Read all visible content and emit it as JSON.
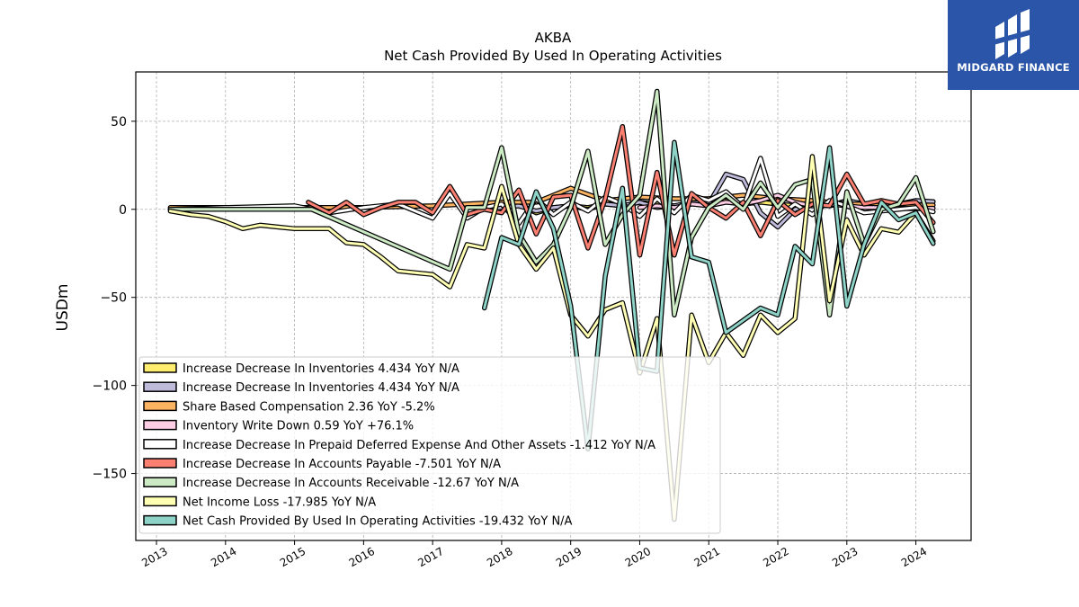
{
  "brand": {
    "name": "MIDGARD FINANCE",
    "color": "#2a55a8"
  },
  "chart_data": {
    "type": "line",
    "title": "AKBA",
    "subtitle": "Net Cash Provided By Used In Operating Activities",
    "xlabel": "",
    "ylabel": "USDm",
    "x_ticks": [
      "2013",
      "2014",
      "2015",
      "2016",
      "2017",
      "2018",
      "2019",
      "2020",
      "2021",
      "2022",
      "2023",
      "2024"
    ],
    "y_ticks": [
      50,
      0,
      -50,
      -100,
      -150
    ],
    "xlim": [
      2012.7,
      2024.8
    ],
    "ylim": [
      -188,
      78
    ],
    "grid": true,
    "legend_position": "lower-left",
    "series": [
      {
        "name": "Increase Decrease In Inventories",
        "legend": "Increase Decrease In Inventories  4.434 YoY N/A",
        "color": "#ffed6f",
        "x": [
          2017.75,
          2018.0,
          2018.25,
          2018.5,
          2018.75,
          2019.0,
          2019.25,
          2019.5,
          2019.75,
          2020.0,
          2020.25,
          2020.5,
          2020.75,
          2021.0,
          2021.25,
          2021.5,
          2021.75,
          2022.0,
          2022.25,
          2022.5,
          2022.75,
          2023.0,
          2023.25,
          2023.5,
          2023.75,
          2024.0,
          2024.25
        ],
        "y": [
          0,
          1,
          3,
          -2,
          1,
          2,
          1,
          3,
          2,
          4,
          3,
          2,
          3,
          4,
          5,
          3,
          4,
          3,
          2,
          3,
          2,
          4,
          3,
          4,
          3,
          4,
          4.4
        ]
      },
      {
        "name": "Increase Decrease In Inventories",
        "legend": "Increase Decrease In Inventories  4.434 YoY N/A",
        "color": "#bebada",
        "x": [
          2017.75,
          2018.0,
          2018.25,
          2018.5,
          2018.75,
          2019.0,
          2019.25,
          2019.5,
          2019.75,
          2020.0,
          2020.25,
          2020.5,
          2020.75,
          2021.0,
          2021.25,
          2021.5,
          2021.75,
          2022.0,
          2022.25,
          2022.5,
          2022.75,
          2023.0,
          2023.25,
          2023.5,
          2023.75,
          2024.0,
          2024.25
        ],
        "y": [
          0,
          1,
          2,
          -1,
          1,
          2,
          0,
          3,
          2,
          4,
          1,
          2,
          4,
          3,
          20,
          17,
          -2,
          -10,
          0,
          3,
          2,
          5,
          3,
          4,
          3,
          5,
          4.4
        ]
      },
      {
        "name": "Share Based Compensation",
        "legend": "Share Based Compensation  2.36 YoY -5.2%",
        "color": "#fdb462",
        "x": [
          2013.2,
          2014.0,
          2015.0,
          2016.0,
          2017.0,
          2017.5,
          2018.0,
          2018.5,
          2019.0,
          2019.5,
          2020.0,
          2020.5,
          2021.0,
          2021.5,
          2022.0,
          2022.5,
          2023.0,
          2023.5,
          2024.0,
          2024.25
        ],
        "y": [
          1,
          1,
          1,
          1,
          2,
          3,
          4,
          4,
          12,
          5,
          7,
          6,
          6,
          8,
          6,
          5,
          3,
          3,
          2.5,
          2.4
        ]
      },
      {
        "name": "Inventory Write Down",
        "legend": "Inventory Write Down  0.59 YoY +76.1%",
        "color": "#fccde5",
        "x": [
          2020.0,
          2020.25,
          2020.5,
          2020.75,
          2021.0,
          2021.25,
          2021.5,
          2021.75,
          2022.0,
          2022.25,
          2022.5,
          2022.75,
          2023.0,
          2023.25,
          2023.5,
          2023.75,
          2024.0,
          2024.25
        ],
        "y": [
          1,
          2,
          1,
          3,
          2,
          4,
          3,
          5,
          8,
          4,
          2,
          3,
          2,
          1,
          1,
          0.5,
          0.4,
          0.6
        ]
      },
      {
        "name": "Increase Decrease In Prepaid Deferred Expense And Other Assets",
        "legend": "Increase Decrease In Prepaid Deferred Expense And Other Assets  -1.412 YoY N/A",
        "color": "#ffffff",
        "x": [
          2013.2,
          2014.0,
          2015.0,
          2015.5,
          2016.0,
          2016.5,
          2017.0,
          2017.25,
          2017.5,
          2017.75,
          2018.0,
          2018.25,
          2018.5,
          2018.75,
          2019.0,
          2019.25,
          2019.5,
          2019.75,
          2020.0,
          2020.25,
          2020.5,
          2020.75,
          2021.0,
          2021.25,
          2021.5,
          2021.75,
          2022.0,
          2022.25,
          2022.5,
          2022.75,
          2023.0,
          2023.25,
          2023.5,
          2023.75,
          2024.0,
          2024.25
        ],
        "y": [
          0,
          1,
          2,
          -2,
          1,
          3,
          -5,
          9,
          -5,
          1,
          3,
          -8,
          6,
          -3,
          4,
          -1,
          7,
          3,
          -4,
          6,
          -2,
          8,
          5,
          10,
          1,
          29,
          -4,
          3,
          -3,
          5,
          2,
          -2,
          -1,
          0,
          1,
          -1.4
        ]
      },
      {
        "name": "Increase Decrease In Accounts Payable",
        "legend": "Increase Decrease In Accounts Payable  -7.501 YoY N/A",
        "color": "#fb8072",
        "x": [
          2015.2,
          2015.5,
          2015.75,
          2016.0,
          2016.25,
          2016.5,
          2016.75,
          2017.0,
          2017.25,
          2017.5,
          2017.75,
          2018.0,
          2018.25,
          2018.5,
          2018.75,
          2019.0,
          2019.25,
          2019.5,
          2019.75,
          2020.0,
          2020.25,
          2020.5,
          2020.75,
          2021.0,
          2021.25,
          2021.5,
          2021.75,
          2022.0,
          2022.25,
          2022.5,
          2022.75,
          2023.0,
          2023.25,
          2023.5,
          2023.75,
          2024.0,
          2024.25
        ],
        "y": [
          4,
          -2,
          4,
          -3,
          1,
          4,
          4,
          -2,
          13,
          -3,
          0,
          -2,
          11,
          -14,
          7,
          8,
          -22,
          6,
          47,
          -26,
          21,
          -26,
          9,
          1,
          -5,
          4,
          -15,
          5,
          -3,
          3,
          2,
          20,
          3,
          5,
          3,
          4,
          -7.5
        ]
      },
      {
        "name": "Increase Decrease In Accounts Receivable",
        "legend": "Increase Decrease In Accounts Receivable  -12.67 YoY N/A",
        "color": "#ccebc5",
        "x": [
          2013.2,
          2014.0,
          2015.0,
          2015.25,
          2017.25,
          2017.5,
          2017.75,
          2018.0,
          2018.25,
          2018.5,
          2018.75,
          2019.0,
          2019.25,
          2019.5,
          2019.75,
          2020.0,
          2020.25,
          2020.5,
          2020.75,
          2021.0,
          2021.25,
          2021.5,
          2021.75,
          2022.0,
          2022.25,
          2022.5,
          2022.75,
          2023.0,
          2023.25,
          2023.5,
          2023.75,
          2024.0,
          2024.25
        ],
        "y": [
          0,
          0,
          0,
          0,
          -34,
          1,
          1,
          35,
          -14,
          -30,
          -20,
          1,
          33,
          -20,
          -3,
          8,
          67,
          -60,
          -16,
          1,
          8,
          0,
          15,
          1,
          14,
          17,
          -60,
          10,
          -20,
          0,
          3,
          18,
          -12.7
        ]
      },
      {
        "name": "Net Income Loss",
        "legend": "Net Income Loss  -17.985 YoY N/A",
        "color": "#ffffb3",
        "x": [
          2013.2,
          2013.5,
          2013.75,
          2014.0,
          2014.25,
          2014.5,
          2014.75,
          2015.0,
          2015.25,
          2015.5,
          2015.75,
          2016.0,
          2016.25,
          2016.5,
          2016.75,
          2017.0,
          2017.25,
          2017.5,
          2017.75,
          2018.0,
          2018.25,
          2018.5,
          2018.75,
          2019.0,
          2019.25,
          2019.5,
          2019.75,
          2020.0,
          2020.25,
          2020.5,
          2020.75,
          2021.0,
          2021.25,
          2021.5,
          2021.75,
          2022.0,
          2022.25,
          2022.5,
          2022.75,
          2023.0,
          2023.25,
          2023.5,
          2023.75,
          2024.0,
          2024.25
        ],
        "y": [
          -1,
          -3,
          -4,
          -7,
          -11,
          -9,
          -10,
          -11,
          -11,
          -11,
          -19,
          -20,
          -27,
          -35,
          -36,
          -37,
          -44,
          -20,
          -22,
          13,
          -20,
          -34,
          -22,
          -60,
          -72,
          -57,
          -53,
          -93,
          -62,
          -176,
          -60,
          -87,
          -70,
          -83,
          -60,
          -70,
          -62,
          30,
          -52,
          -6,
          -26,
          -11,
          -13,
          -2,
          -18
        ]
      },
      {
        "name": "Net Cash Provided By Used In Operating Activities",
        "legend": "Net Cash Provided By Used In Operating Activities  -19.432 YoY N/A",
        "color": "#8dd3c7",
        "x": [
          2017.75,
          2018.0,
          2018.25,
          2018.5,
          2018.75,
          2019.0,
          2019.25,
          2019.5,
          2019.75,
          2020.0,
          2020.25,
          2020.5,
          2020.75,
          2021.0,
          2021.25,
          2021.5,
          2021.75,
          2022.0,
          2022.25,
          2022.5,
          2022.75,
          2023.0,
          2023.25,
          2023.5,
          2023.75,
          2024.0,
          2024.25
        ],
        "y": [
          -56,
          -16,
          -20,
          10,
          -11,
          -55,
          -136,
          -38,
          12,
          -90,
          -92,
          38,
          -27,
          -30,
          -70,
          -63,
          -56,
          -60,
          -21,
          -31,
          35,
          -55,
          -20,
          4,
          -6,
          -2,
          -19.4
        ]
      }
    ]
  }
}
